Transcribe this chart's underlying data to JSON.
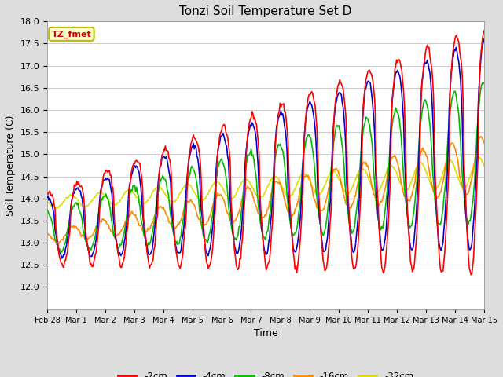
{
  "title": "Tonzi Soil Temperature Set D",
  "xlabel": "Time",
  "ylabel": "Soil Temperature (C)",
  "ylim": [
    11.5,
    18.0
  ],
  "yticks": [
    12.0,
    12.5,
    13.0,
    13.5,
    14.0,
    14.5,
    15.0,
    15.5,
    16.0,
    16.5,
    17.0,
    17.5,
    18.0
  ],
  "legend_label": "TZ_fmet",
  "series_colors": {
    "-2cm": "#ff0000",
    "-4cm": "#0000cc",
    "-8cm": "#00bb00",
    "-16cm": "#ff8800",
    "-32cm": "#dddd00"
  },
  "background_color": "#dddddd",
  "plot_bg_color": "#ffffff",
  "grid_color": "#cccccc",
  "n_points": 500,
  "start_day": 0,
  "end_day": 15.0,
  "xtick_positions": [
    0,
    1,
    2,
    3,
    4,
    5,
    6,
    7,
    8,
    9,
    10,
    11,
    12,
    13,
    14,
    15
  ],
  "xtick_labels": [
    "Feb 28",
    "Mar 1",
    "Mar 2",
    "Mar 3",
    "Mar 4",
    "Mar 5",
    "Mar 6",
    "Mar 7",
    "Mar 8",
    "Mar 9",
    "Mar 10",
    "Mar 11",
    "Mar 12",
    "Mar 13",
    "Mar 14",
    "Mar 15"
  ]
}
